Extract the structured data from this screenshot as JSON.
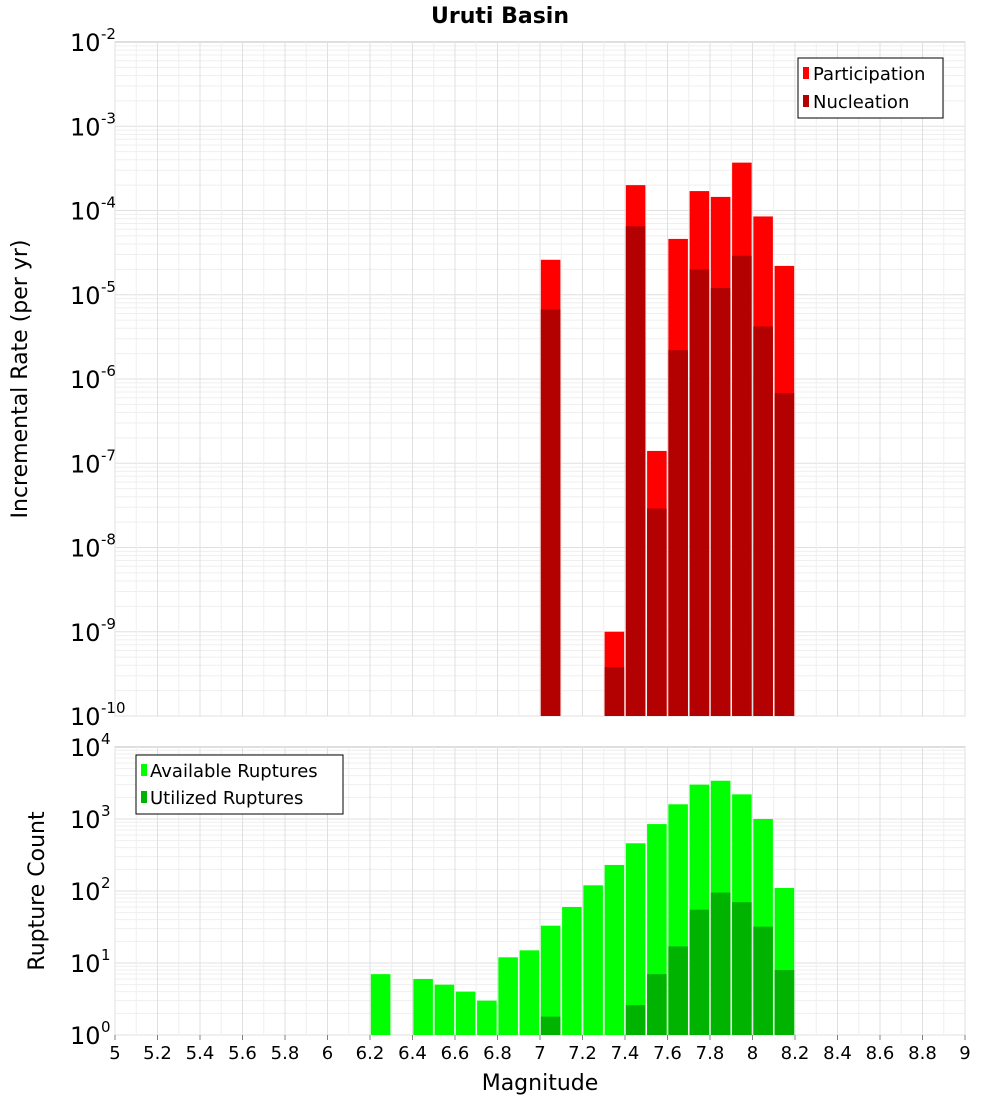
{
  "chart_data": [
    {
      "type": "bar",
      "scale": "log",
      "title": "Uruti Basin",
      "xlabel": "Magnitude",
      "ylabel": "Incremental Rate (per yr)",
      "xlim": [
        5,
        9
      ],
      "ylim_exponents": [
        -10,
        -2
      ],
      "y_tick_exponents": [
        "-10",
        "-9",
        "-8",
        "-7",
        "-6",
        "-5",
        "-4",
        "-3",
        "-2"
      ],
      "legend_position": "top-right",
      "x": [
        7.05,
        7.35,
        7.45,
        7.55,
        7.65,
        7.75,
        7.85,
        7.95,
        8.05,
        8.15
      ],
      "series": [
        {
          "name": "Participation",
          "color": "#ff0000",
          "values": [
            2.6e-05,
            1e-09,
            0.0002,
            1.4e-07,
            4.6e-05,
            0.00017,
            0.000145,
            0.00037,
            8.5e-05,
            2.2e-05
          ]
        },
        {
          "name": "Nucleation",
          "color": "#b30000",
          "values": [
            6.7e-06,
            3.8e-10,
            6.5e-05,
            2.9e-08,
            2.2e-06,
            2e-05,
            1.2e-05,
            2.9e-05,
            4.2e-06,
            6.8e-07
          ]
        }
      ]
    },
    {
      "type": "bar",
      "scale": "log",
      "xlabel": "Magnitude",
      "ylabel": "Rupture Count",
      "xlim": [
        5,
        9
      ],
      "ylim_exponents": [
        0,
        4
      ],
      "y_tick_exponents": [
        "0",
        "1",
        "2",
        "3",
        "4"
      ],
      "x_ticks": [
        "5",
        "5.2",
        "5.4",
        "5.6",
        "5.8",
        "6",
        "6.2",
        "6.4",
        "6.6",
        "6.8",
        "7",
        "7.2",
        "7.4",
        "7.6",
        "7.8",
        "8",
        "8.2",
        "8.4",
        "8.6",
        "8.8",
        "9"
      ],
      "legend_position": "top-left",
      "x": [
        6.25,
        6.45,
        6.55,
        6.65,
        6.75,
        6.85,
        6.95,
        7.05,
        7.15,
        7.25,
        7.35,
        7.45,
        7.55,
        7.65,
        7.75,
        7.85,
        7.95,
        8.05,
        8.15
      ],
      "series": [
        {
          "name": "Available Ruptures",
          "color": "#00ff00",
          "values": [
            7,
            6,
            5,
            4,
            3,
            12,
            15,
            33,
            60,
            120,
            230,
            460,
            850,
            1600,
            3000,
            3400,
            2200,
            1000,
            110
          ]
        },
        {
          "name": "Utilized Ruptures",
          "color": "#00b300",
          "values": [
            0,
            0,
            0,
            0,
            0,
            0,
            0,
            1.8,
            0,
            0,
            1,
            2.6,
            7,
            17,
            55,
            95,
            70,
            32,
            8
          ]
        }
      ]
    }
  ]
}
